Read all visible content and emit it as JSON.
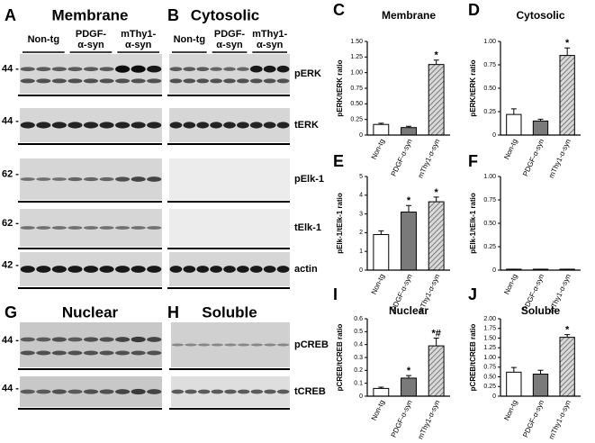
{
  "blots": [
    {
      "letter": "A",
      "title": "Membrane",
      "groups": [
        [
          "Non-tg"
        ],
        [
          "PDGF-",
          "α-syn"
        ],
        [
          "mThy1-",
          "α-syn"
        ]
      ]
    },
    {
      "letter": "B",
      "title": "Cytosolic",
      "groups": [
        [
          "Non-tg"
        ],
        [
          "PDGF-",
          "α-syn"
        ],
        [
          "mThy1-",
          "α-syn"
        ]
      ]
    },
    {
      "letter": "G",
      "title": "Nuclear"
    },
    {
      "letter": "H",
      "title": "Soluble"
    }
  ],
  "markers_top": [
    "44 -",
    "44 -",
    "62 -",
    "62 -",
    "42 -"
  ],
  "proteins_top": [
    "pERK",
    "tERK",
    "pElk-1",
    "tElk-1",
    "actin"
  ],
  "markers_bottom": [
    "44 -",
    "44 -"
  ],
  "proteins_bottom": [
    "pCREB",
    "tCREB"
  ],
  "chart_data": [
    {
      "type": "bar",
      "letter": "C",
      "title": "Membrane",
      "ylabel": "pERK/tERK ratio",
      "categories": [
        "Non-tg",
        "PDGF-α-syn",
        "mThy1-α-syn"
      ],
      "values": [
        0.17,
        0.12,
        1.13
      ],
      "errors": [
        0.02,
        0.02,
        0.07
      ],
      "annotations": [
        null,
        null,
        "*"
      ],
      "colors": [
        "#ffffff",
        "#7a7a7a",
        "#d0d0d0"
      ],
      "hatched": [
        false,
        false,
        true
      ],
      "ylim": [
        0,
        1.5
      ],
      "yticks": [
        0,
        0.25,
        {
          "value": 0.5,
          "label": "0.50"
        },
        {
          "value": 0.75,
          "label": "0.75"
        },
        {
          "value": 1,
          "label": "1.00"
        },
        {
          "value": 1.25,
          "label": "1.25"
        },
        {
          "value": 1.5,
          "label": "1.50"
        }
      ]
    },
    {
      "type": "bar",
      "letter": "D",
      "title": "Cytosolic",
      "ylabel": "pERK/tERK ratio",
      "categories": [
        "Non-tg",
        "PDGF-α-syn",
        "mThy1-α-syn"
      ],
      "values": [
        0.22,
        0.15,
        0.85
      ],
      "errors": [
        0.06,
        0.02,
        0.08
      ],
      "annotations": [
        null,
        null,
        "*"
      ],
      "colors": [
        "#ffffff",
        "#7a7a7a",
        "#d0d0d0"
      ],
      "hatched": [
        false,
        false,
        true
      ],
      "ylim": [
        0,
        1
      ],
      "yticks": [
        0,
        0.25,
        {
          "value": 0.5,
          "label": "0.50"
        },
        {
          "value": 0.75,
          "label": "0.75"
        },
        {
          "value": 1,
          "label": "1.00"
        }
      ]
    },
    {
      "type": "bar",
      "letter": "E",
      "ylabel": "pElk-1/tElk-1 ratio",
      "categories": [
        "Non-tg",
        "PDGF-α-syn",
        "mThy1-α-syn"
      ],
      "values": [
        1.9,
        3.1,
        3.65
      ],
      "errors": [
        0.2,
        0.35,
        0.25
      ],
      "annotations": [
        null,
        "*",
        "*"
      ],
      "colors": [
        "#ffffff",
        "#7a7a7a",
        "#d0d0d0"
      ],
      "hatched": [
        false,
        false,
        true
      ],
      "ylim": [
        0,
        5
      ],
      "yticks": [
        0,
        1,
        2,
        3,
        4,
        5
      ]
    },
    {
      "type": "bar",
      "letter": "F",
      "ylabel": "pElk-1/tElk-1 ratio",
      "categories": [
        "Non-tg",
        "PDGF-α-syn",
        "mThy1-α-syn"
      ],
      "values": [
        0.01,
        0.01,
        0.01
      ],
      "errors": [
        0,
        0,
        0
      ],
      "annotations": [
        null,
        null,
        null
      ],
      "colors": [
        "#ffffff",
        "#7a7a7a",
        "#d0d0d0"
      ],
      "hatched": [
        false,
        false,
        true
      ],
      "ylim": [
        0,
        1
      ],
      "yticks": [
        0,
        0.25,
        {
          "value": 0.5,
          "label": "0.50"
        },
        {
          "value": 0.75,
          "label": "0.75"
        },
        {
          "value": 1,
          "label": "1.00"
        }
      ]
    },
    {
      "type": "bar",
      "letter": "I",
      "title": "Nuclear",
      "ylabel": "pCREB/tCREB ratio",
      "categories": [
        "Non-tg",
        "PDGF-α-syn",
        "mThy1-α-syn"
      ],
      "values": [
        0.06,
        0.14,
        0.39
      ],
      "errors": [
        0.01,
        0.02,
        0.06
      ],
      "annotations": [
        null,
        "*",
        "*#"
      ],
      "colors": [
        "#ffffff",
        "#7a7a7a",
        "#d0d0d0"
      ],
      "hatched": [
        false,
        false,
        true
      ],
      "ylim": [
        0,
        0.6
      ],
      "yticks": [
        0,
        0.1,
        0.2,
        0.3,
        0.4,
        0.5,
        0.6
      ]
    },
    {
      "type": "bar",
      "letter": "J",
      "title": "Soluble",
      "ylabel": "pCREB/tCREB ratio",
      "categories": [
        "Non-tg",
        "PDGF-α-syn",
        "mThy1-α-syn"
      ],
      "values": [
        0.62,
        0.57,
        1.52
      ],
      "errors": [
        0.12,
        0.1,
        0.07
      ],
      "annotations": [
        null,
        null,
        "*"
      ],
      "colors": [
        "#ffffff",
        "#7a7a7a",
        "#d0d0d0"
      ],
      "hatched": [
        false,
        false,
        true
      ],
      "ylim": [
        0,
        2
      ],
      "yticks": [
        0,
        0.25,
        {
          "value": 0.5,
          "label": "0.50"
        },
        {
          "value": 0.75,
          "label": "0.75"
        },
        {
          "value": 1,
          "label": "1.00"
        },
        {
          "value": 1.25,
          "label": "1.25"
        },
        {
          "value": 1.5,
          "label": "1.50"
        },
        {
          "value": 1.75,
          "label": "1.75"
        },
        {
          "value": 2,
          "label": "2.00"
        }
      ]
    }
  ]
}
